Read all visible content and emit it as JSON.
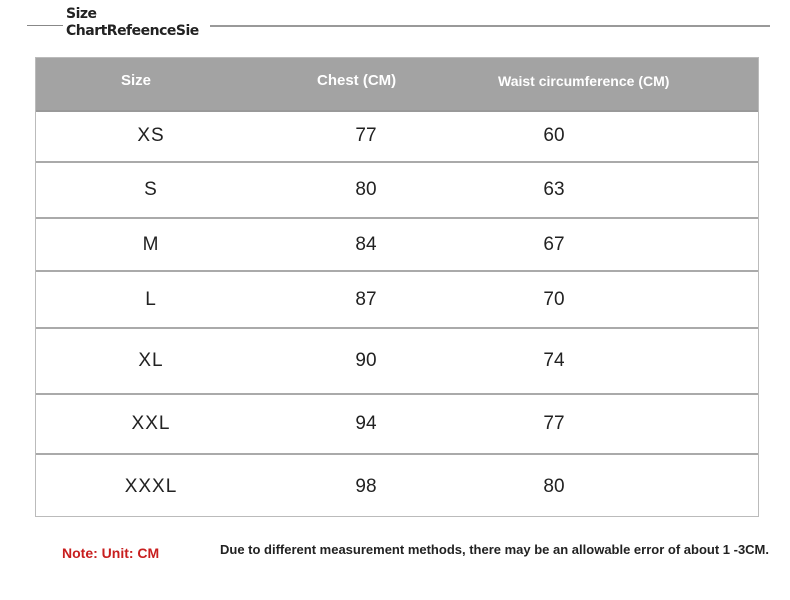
{
  "title": {
    "line1": "Size",
    "line2": "ChartRefeenceSie"
  },
  "table": {
    "headers": [
      "Size",
      "Chest (CM)",
      "Waist circumference (CM)"
    ],
    "rows": [
      [
        "XS",
        "77",
        "60"
      ],
      [
        "S",
        "80",
        "63"
      ],
      [
        "M",
        "84",
        "67"
      ],
      [
        "L",
        "87",
        "70"
      ],
      [
        "XL",
        "90",
        "74"
      ],
      [
        "XXL",
        "94",
        "77"
      ],
      [
        "XXXL",
        "98",
        "80"
      ]
    ]
  },
  "note": "Note: Unit: CM",
  "disclaimer": "Due to different measurement methods, there may be an allowable error of about 1 -3CM.",
  "colors": {
    "header_bg": "#a3a3a3",
    "note": "#c81e1e"
  }
}
